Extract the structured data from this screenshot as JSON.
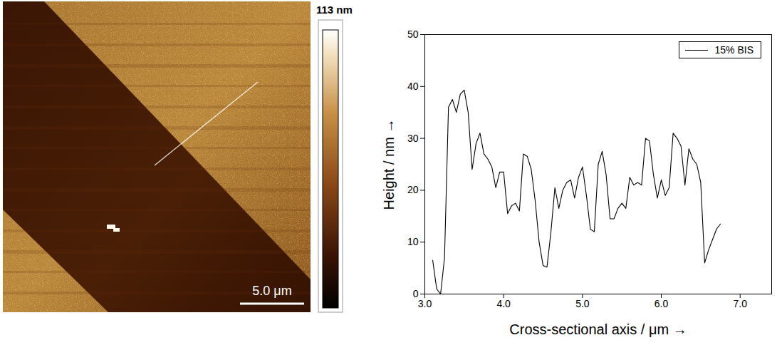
{
  "image": {
    "colorbar_label": "113 nm",
    "scale_bar_label": "5.0 μm"
  },
  "chart_data": {
    "type": "line",
    "x_label": "Cross-sectional axis / μm",
    "y_label": "Height / nm",
    "xlim": [
      3,
      7.4
    ],
    "xticks": [
      3,
      4,
      5,
      6,
      7
    ],
    "ylim": [
      0,
      50
    ],
    "yticks": [
      0,
      10,
      20,
      30,
      40,
      50
    ],
    "legend": "top-right",
    "x": [
      3.1,
      3.15,
      3.2,
      3.25,
      3.3,
      3.35,
      3.4,
      3.45,
      3.5,
      3.55,
      3.6,
      3.65,
      3.7,
      3.75,
      3.8,
      3.85,
      3.9,
      3.95,
      4.0,
      4.05,
      4.1,
      4.15,
      4.2,
      4.25,
      4.3,
      4.35,
      4.4,
      4.45,
      4.5,
      4.55,
      4.6,
      4.65,
      4.7,
      4.75,
      4.8,
      4.85,
      4.9,
      4.95,
      5.0,
      5.05,
      5.1,
      5.15,
      5.2,
      5.25,
      5.3,
      5.35,
      5.4,
      5.45,
      5.5,
      5.55,
      5.6,
      5.65,
      5.7,
      5.75,
      5.8,
      5.85,
      5.9,
      5.95,
      6.0,
      6.05,
      6.1,
      6.15,
      6.2,
      6.25,
      6.3,
      6.35,
      6.4,
      6.45,
      6.5,
      6.55,
      6.6,
      6.65,
      6.7,
      6.75
    ],
    "series": [
      {
        "name": "15% BIS",
        "color": "#000000",
        "values": [
          6.5,
          1,
          0,
          7,
          36,
          37.5,
          35,
          38.5,
          39.3,
          35,
          24,
          29,
          31,
          27,
          26,
          24.5,
          20.5,
          23.5,
          23.5,
          15.5,
          17,
          17.5,
          16,
          27,
          26.5,
          24,
          18,
          10,
          5.5,
          5.2,
          12,
          20.5,
          16.5,
          20,
          21.5,
          22,
          18.5,
          22.5,
          24.5,
          19,
          12.5,
          12,
          25,
          27.5,
          23,
          14.5,
          14.5,
          16.5,
          17.5,
          16.5,
          22.5,
          21,
          21.5,
          21,
          30,
          29.5,
          23,
          18.5,
          22,
          19,
          20.5,
          31,
          30,
          28.5,
          21,
          28,
          26,
          25,
          21.5,
          6,
          8.5,
          10.5,
          12.5,
          13.5
        ]
      }
    ]
  }
}
